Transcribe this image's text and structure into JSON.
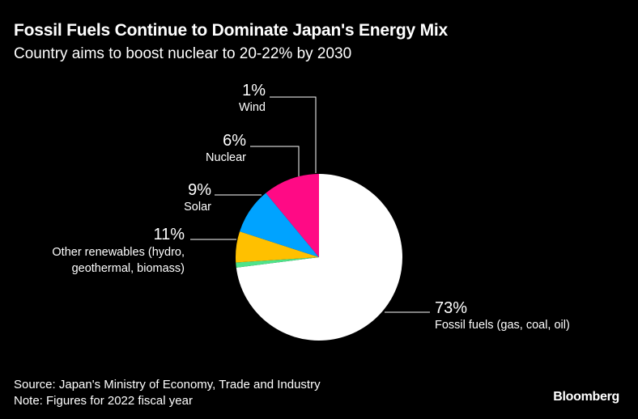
{
  "header": {
    "title": "Fossil Fuels Continue to Dominate Japan's Energy Mix",
    "subtitle": "Country aims to boost nuclear to 20-22% by 2030"
  },
  "footer": {
    "source": "Source: Japan's Ministry of Economy, Trade and Industry",
    "note": "Note: Figures for 2022 fiscal year"
  },
  "brand": "Bloomberg",
  "chart_data": {
    "type": "pie",
    "title": "Fossil Fuels Continue to Dominate Japan's Energy Mix",
    "subtitle": "Country aims to boost nuclear to 20-22% by 2030",
    "slices": [
      {
        "label": "Fossil fuels (gas, coal, oil)",
        "value": 73,
        "value_label": "73%",
        "color": "#ffffff"
      },
      {
        "label": "Other renewables (hydro, geothermal, biomass)",
        "value": 11,
        "value_label": "11%",
        "color": "#ff0a85"
      },
      {
        "label": "Solar",
        "value": 9,
        "value_label": "9%",
        "color": "#00a3ff"
      },
      {
        "label": "Nuclear",
        "value": 6,
        "value_label": "6%",
        "color": "#ffc000"
      },
      {
        "label": "Wind",
        "value": 1,
        "value_label": "1%",
        "color": "#4ee38a"
      }
    ]
  }
}
